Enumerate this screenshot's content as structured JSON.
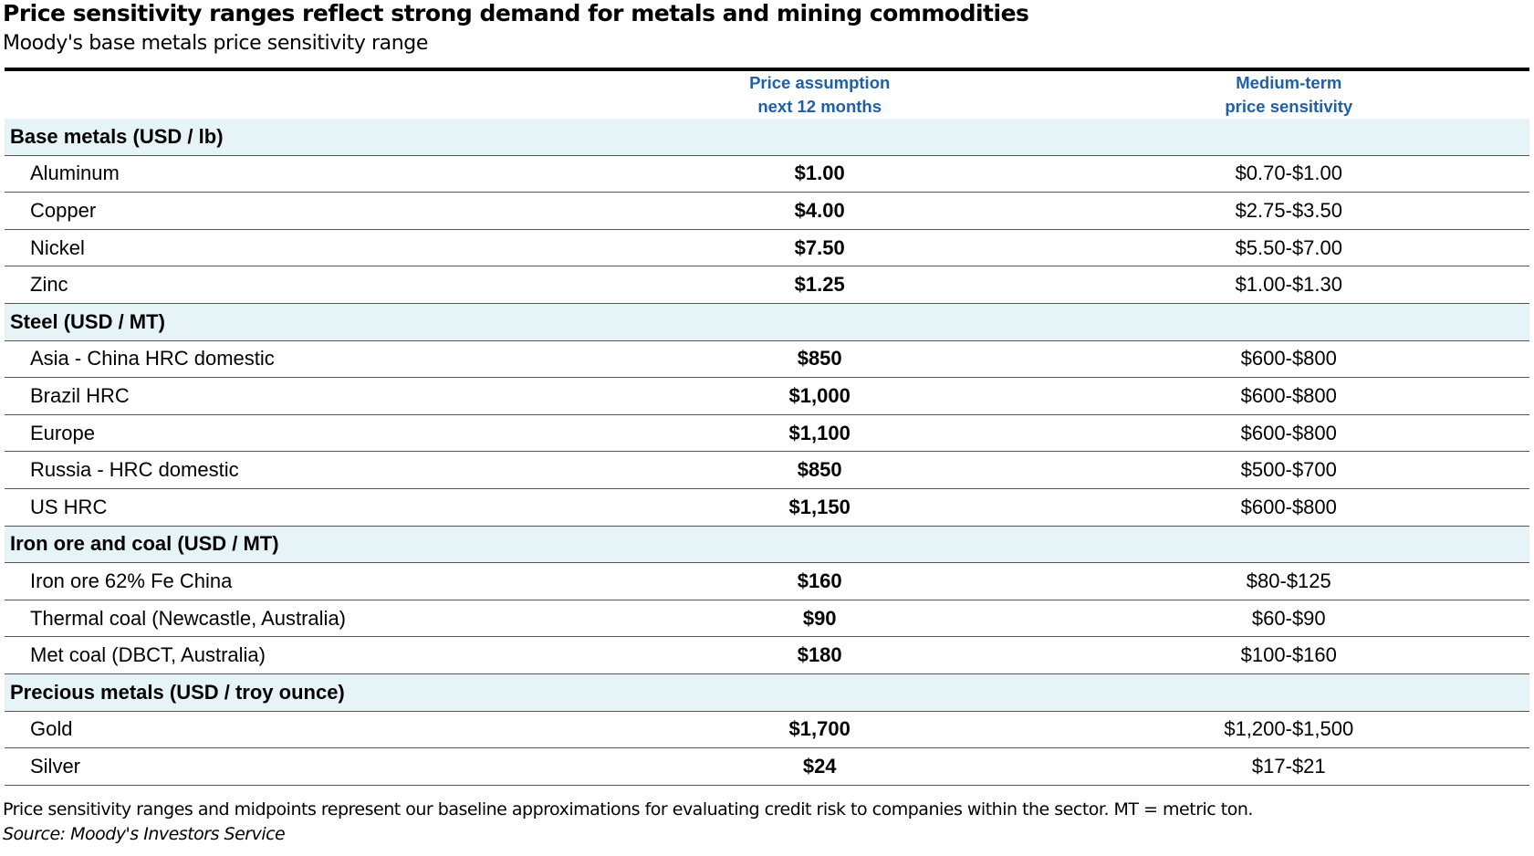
{
  "title": "Price sensitivity ranges reflect strong demand for metals and mining commodities",
  "subtitle": "Moody's base metals price sensitivity range",
  "table": {
    "columns": [
      [
        "Price assumption",
        "next 12 months"
      ],
      [
        "Medium-term",
        "price sensitivity"
      ]
    ],
    "groups": [
      {
        "label": "Base metals (USD / lb)",
        "rows": [
          [
            "Aluminum",
            "$1.00",
            "$0.70-$1.00"
          ],
          [
            "Copper",
            "$4.00",
            "$2.75-$3.50"
          ],
          [
            "Nickel",
            "$7.50",
            "$5.50-$7.00"
          ],
          [
            "Zinc",
            "$1.25",
            "$1.00-$1.30"
          ]
        ]
      },
      {
        "label": "Steel  (USD / MT)",
        "rows": [
          [
            "Asia - China HRC domestic",
            "$850",
            "$600-$800"
          ],
          [
            "Brazil HRC",
            "$1,000",
            "$600-$800"
          ],
          [
            "Europe",
            "$1,100",
            "$600-$800"
          ],
          [
            "Russia - HRC domestic",
            "$850",
            "$500-$700"
          ],
          [
            "US HRC",
            "$1,150",
            "$600-$800"
          ]
        ]
      },
      {
        "label": "Iron ore and coal (USD / MT)",
        "rows": [
          [
            "Iron ore 62% Fe China",
            "$160",
            "$80-$125"
          ],
          [
            "Thermal coal (Newcastle, Australia)",
            "$90",
            "$60-$90"
          ],
          [
            "Met coal (DBCT, Australia)",
            "$180",
            "$100-$160"
          ]
        ]
      },
      {
        "label": "Precious metals (USD / troy ounce)",
        "rows": [
          [
            "Gold",
            "$1,700",
            "$1,200-$1,500"
          ],
          [
            "Silver",
            "$24",
            "$17-$21"
          ]
        ]
      }
    ]
  },
  "note": "Price sensitivity ranges and midpoints represent our baseline approximations for evaluating credit risk to companies within the sector. MT = metric ton.",
  "source": "Source: Moody's Investors Service"
}
